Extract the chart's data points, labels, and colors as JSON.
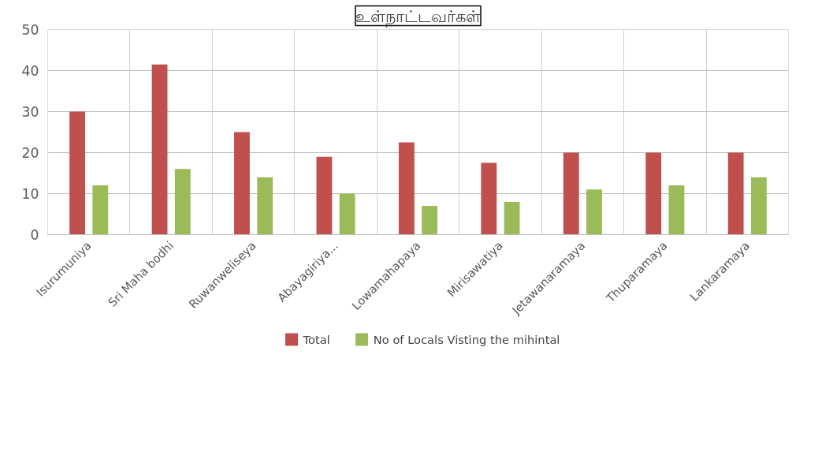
{
  "chart_data": {
    "type": "bar",
    "title": "உள்நாட்டவர்கள்",
    "categories": [
      "Isurumuniya",
      "Sri Maha bodhi",
      "Ruwanweliseya",
      "Abayagiriya...",
      "Lowamahapaya",
      "Mirisawatiya",
      "Jetawanaramaya",
      "Thuparamaya",
      "Lankaramaya"
    ],
    "series": [
      {
        "name": "Total",
        "color": "#c0504d",
        "values": [
          30,
          41.5,
          25,
          19,
          22.5,
          17.5,
          20,
          20,
          20
        ]
      },
      {
        "name": "No of Locals Visting the mihintal",
        "color": "#9bbb59",
        "values": [
          12,
          16,
          14,
          10,
          7,
          8,
          11,
          12,
          14
        ]
      }
    ],
    "ylim": [
      0,
      50
    ],
    "yticks": [
      0,
      10,
      20,
      30,
      40,
      50
    ],
    "grid": true,
    "legend": "bottom"
  }
}
